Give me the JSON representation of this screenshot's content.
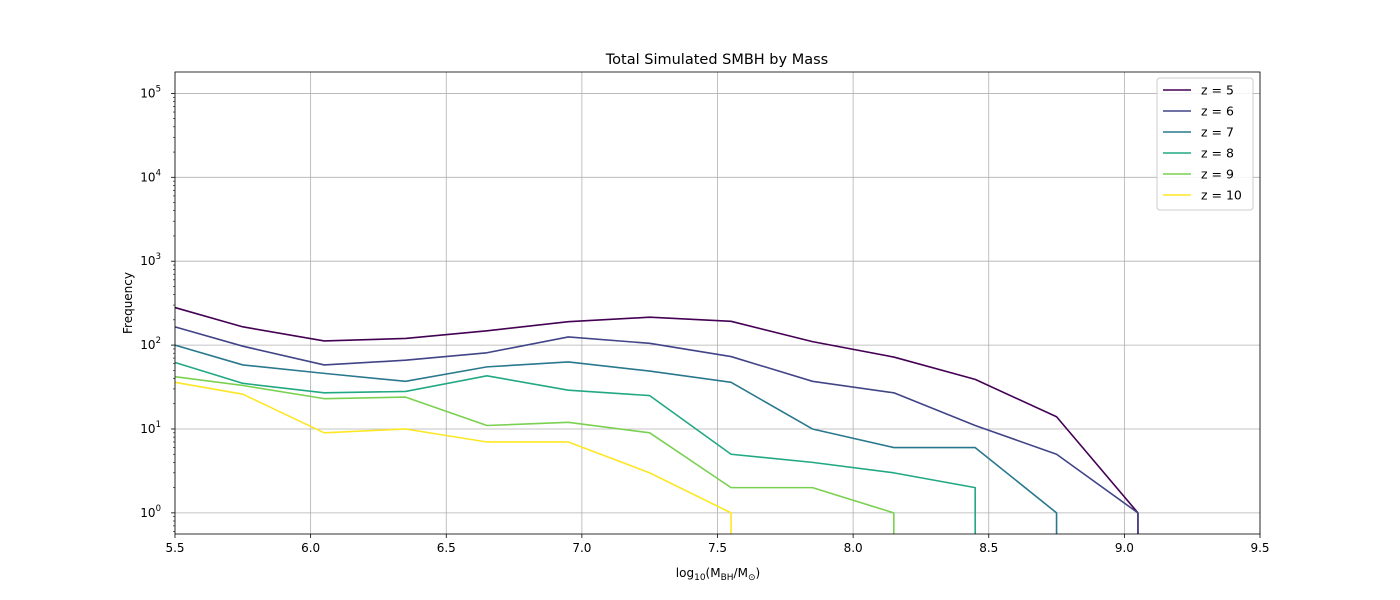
{
  "chart_data": {
    "type": "line",
    "title": "Total Simulated SMBH by Mass",
    "xlabel_main": "log",
    "xlabel_sub": "10",
    "xlabel_paren_open": "(M",
    "xlabel_bh": "BH",
    "xlabel_slash": "/M",
    "xlabel_sun": "⊙",
    "xlabel_paren_close": ")",
    "ylabel": "Frequency",
    "xlim": [
      5.5,
      9.5
    ],
    "ylim": [
      0.56,
      180000
    ],
    "yscale": "log",
    "grid": true,
    "legend_position": "top-right",
    "x_ticks": [
      "5.5",
      "6.0",
      "6.5",
      "7.0",
      "7.5",
      "8.0",
      "8.5",
      "9.0",
      "9.5"
    ],
    "x_tick_values": [
      5.5,
      6.0,
      6.5,
      7.0,
      7.5,
      8.0,
      8.5,
      9.0,
      9.5
    ],
    "y_ticks": [
      {
        "value": 1,
        "base": "10",
        "exp": "0"
      },
      {
        "value": 10,
        "base": "10",
        "exp": "1"
      },
      {
        "value": 100,
        "base": "10",
        "exp": "2"
      },
      {
        "value": 1000,
        "base": "10",
        "exp": "3"
      },
      {
        "value": 10000,
        "base": "10",
        "exp": "4"
      },
      {
        "value": 100000,
        "base": "10",
        "exp": "5"
      }
    ],
    "series": [
      {
        "name": "z = 5",
        "color": "#440154",
        "x": [
          5.5,
          5.75,
          6.05,
          6.35,
          6.65,
          6.95,
          7.25,
          7.55,
          7.85,
          8.15,
          8.45,
          8.75,
          9.05,
          9.05
        ],
        "y": [
          280,
          165,
          112,
          120,
          148,
          190,
          215,
          192,
          110,
          72,
          39,
          14,
          1,
          0.56
        ]
      },
      {
        "name": "z = 6",
        "color": "#414487",
        "x": [
          5.5,
          5.75,
          6.05,
          6.35,
          6.65,
          6.95,
          7.25,
          7.55,
          7.85,
          8.15,
          8.45,
          8.75,
          9.05,
          9.05
        ],
        "y": [
          165,
          97,
          58,
          66,
          81,
          125,
          105,
          73,
          37,
          27,
          11,
          5,
          1,
          0.56
        ]
      },
      {
        "name": "z = 7",
        "color": "#2a788e",
        "x": [
          5.5,
          5.75,
          6.05,
          6.35,
          6.65,
          6.95,
          7.25,
          7.55,
          7.85,
          8.15,
          8.45,
          8.75,
          8.75
        ],
        "y": [
          100,
          58,
          46,
          37,
          55,
          63,
          49,
          36,
          10,
          6,
          6,
          1,
          0.56
        ]
      },
      {
        "name": "z = 8",
        "color": "#22a884",
        "x": [
          5.5,
          5.75,
          6.05,
          6.35,
          6.65,
          6.95,
          7.25,
          7.55,
          7.85,
          8.15,
          8.45,
          8.45
        ],
        "y": [
          62,
          35,
          27,
          28,
          43,
          29,
          25,
          5,
          4,
          3,
          2,
          0.56
        ]
      },
      {
        "name": "z = 9",
        "color": "#7ad151",
        "x": [
          5.5,
          5.75,
          6.05,
          6.35,
          6.65,
          6.95,
          7.25,
          7.55,
          7.85,
          8.15,
          8.15
        ],
        "y": [
          42,
          33,
          23,
          24,
          11,
          12,
          9,
          2,
          2,
          1,
          0.56
        ]
      },
      {
        "name": "z = 10",
        "color": "#fde725",
        "x": [
          5.5,
          5.75,
          6.05,
          6.35,
          6.65,
          6.95,
          7.25,
          7.55,
          7.55
        ],
        "y": [
          36,
          26,
          9,
          10,
          7,
          7,
          3,
          1,
          0.56
        ]
      }
    ]
  }
}
